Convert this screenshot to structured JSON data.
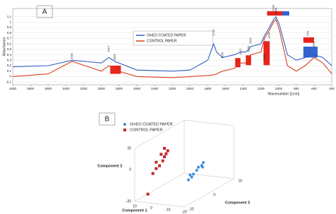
{
  "chart_data": [
    {
      "type": "line",
      "panel_label": "A",
      "x_label": "Wavenumber [1/cm]",
      "y_label": "Absorbance",
      "x": [
        4000,
        3600,
        3331,
        3000,
        2917,
        2849,
        2600,
        2200,
        2000,
        1800,
        1733,
        1700,
        1633,
        1500,
        1427,
        1370,
        1335,
        1315,
        1200,
        1160,
        1105,
        1055,
        1030,
        990,
        900,
        800,
        700,
        600,
        500,
        400
      ],
      "series": [
        {
          "name": "OmEO COATED PAPER",
          "color": "#2f5fc4",
          "values": [
            0.18,
            0.2,
            0.3,
            0.25,
            0.35,
            0.28,
            0.12,
            0.1,
            0.12,
            0.3,
            0.6,
            0.45,
            0.35,
            0.4,
            0.45,
            0.45,
            0.5,
            0.55,
            0.6,
            0.75,
            0.9,
            1.05,
            1.1,
            0.95,
            0.4,
            0.3,
            0.35,
            0.4,
            0.35,
            0.2
          ]
        },
        {
          "name": "CONTROL PAPER",
          "color": "#d8401c",
          "values": [
            0.0,
            0.05,
            0.28,
            0.1,
            0.2,
            0.12,
            0.0,
            -0.02,
            0.0,
            0.02,
            0.03,
            0.05,
            0.1,
            0.15,
            0.25,
            0.25,
            0.35,
            0.4,
            0.45,
            0.7,
            0.85,
            1.0,
            1.05,
            0.85,
            0.2,
            0.1,
            0.2,
            0.35,
            0.25,
            0.05
          ]
        }
      ],
      "xlim": [
        4000,
        400
      ],
      "xticks": [
        4000,
        3800,
        3600,
        3400,
        3200,
        3000,
        2800,
        2600,
        2400,
        2200,
        2000,
        1800,
        1600,
        1400,
        1200,
        1000,
        800,
        600,
        400
      ],
      "ylim": [
        -0.15,
        1.25
      ],
      "yticks": [
        {
          "value": -0.1,
          "label": "-0,1"
        },
        0,
        {
          "value": 0.1,
          "label": "0,1"
        },
        {
          "value": 0.2,
          "label": "0,2"
        },
        {
          "value": 0.3,
          "label": "0,3"
        },
        {
          "value": 0.4,
          "label": "0,4"
        },
        {
          "value": 0.5,
          "label": "0,5"
        },
        {
          "value": 0.6,
          "label": "0,6"
        },
        {
          "value": 0.7,
          "label": "0,7"
        },
        {
          "value": 0.8,
          "label": "0,8"
        },
        {
          "value": 0.9,
          "label": "0,9"
        },
        1,
        {
          "value": 1.1,
          "label": "1,1"
        }
      ],
      "annotations": [
        {
          "x": 3331,
          "y": 0.32
        },
        {
          "x": 2917,
          "y": 0.45
        },
        {
          "x": 2849,
          "y": 0.3
        },
        {
          "x": 1733,
          "y": 0.75
        },
        {
          "x": 1633,
          "y": 0.33
        },
        {
          "x": 1427,
          "y": 0.4
        },
        {
          "x": 1335,
          "y": 0.45
        },
        {
          "x": 1315,
          "y": 0.6
        },
        {
          "x": 1160,
          "y": 0.3
        },
        {
          "x": 1105,
          "y": 0.7
        },
        {
          "x": 1055,
          "y": 1.2
        },
        {
          "x": 1030,
          "y": 1.15
        },
        {
          "x": 670,
          "y": 0.75
        },
        {
          "x": 600,
          "y": 0.55
        }
      ],
      "highlights": [
        {
          "x": [
            2900,
            2780
          ],
          "y": [
            0.05,
            0.2
          ],
          "color": "#e8231d"
        },
        {
          "x": [
            1830,
            1750
          ],
          "y": [
            0.6,
            0.72
          ],
          "color": "#3563d0"
        },
        {
          "x": [
            1490,
            1430
          ],
          "y": [
            0.17,
            0.34
          ],
          "color": "#e8231d"
        },
        {
          "x": [
            1370,
            1310
          ],
          "y": [
            0.21,
            0.39
          ],
          "color": "#e8231d"
        },
        {
          "x": [
            1170,
            1100
          ],
          "y": [
            0.21,
            0.65
          ],
          "color": "#e8231d"
        },
        {
          "x": [
            1130,
            940
          ],
          "y": [
            1.12,
            1.2
          ],
          "color": "#e8231d"
        },
        {
          "x": [
            960,
            880
          ],
          "y": [
            1.12,
            1.2
          ],
          "color": "#3563d0"
        },
        {
          "x": [
            720,
            600
          ],
          "y": [
            0.62,
            0.72
          ],
          "color": "#e8231d"
        },
        {
          "x": [
            720,
            560
          ],
          "y": [
            0.35,
            0.55
          ],
          "color": "#3563d0"
        }
      ]
    },
    {
      "type": "scatter3d",
      "panel_label": "B",
      "x_label": "Component 1",
      "y_label": "Component 2",
      "z_label": "Component 3",
      "xlim": [
        -20,
        10
      ],
      "xticks": [
        10,
        0,
        -10,
        -20
      ],
      "ylim": [
        -30,
        20
      ],
      "yticks": [
        20,
        0,
        -30
      ],
      "zlim": [
        -10,
        10
      ],
      "zticks": [
        -10,
        0,
        10
      ],
      "series": [
        {
          "name": "OmEO COATED PAPER",
          "color": "#3a8fdc",
          "marker": "circle",
          "x": [
            0,
            -2,
            -3,
            -5,
            -6,
            -8,
            -9,
            -4,
            -7
          ],
          "y": [
            -28,
            -25,
            -22,
            -18,
            -15,
            -13,
            -10,
            -20,
            -16
          ],
          "z": [
            5,
            5,
            5,
            5,
            5,
            5,
            5,
            3,
            6
          ]
        },
        {
          "name": "CONTROL PAPER",
          "color": "#c8242c",
          "marker": "square",
          "x": [
            5,
            2,
            0,
            -2,
            -4,
            -5,
            -6,
            -7,
            -5,
            -3,
            0
          ],
          "y": [
            -25,
            -5,
            0,
            3,
            8,
            12,
            15,
            18,
            20,
            14,
            6
          ],
          "z": [
            -8,
            -8,
            -8,
            -8,
            -8,
            -8,
            -8,
            -8,
            -8,
            -8,
            -8
          ]
        }
      ]
    }
  ]
}
